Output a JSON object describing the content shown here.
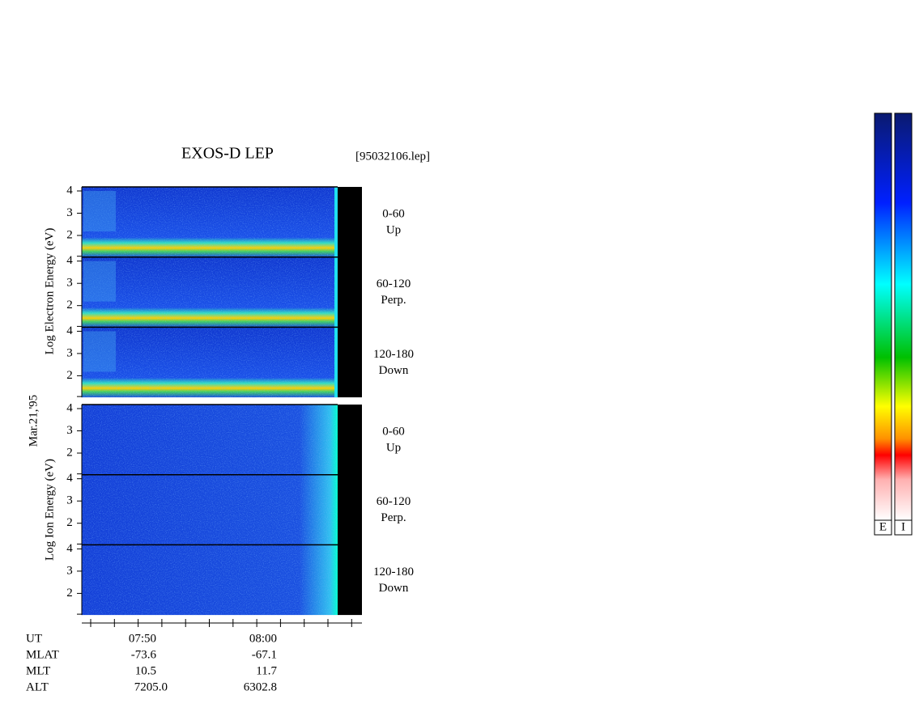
{
  "title": "EXOS-D LEP",
  "file": "[95032106.lep]",
  "date_label": "Mar.21,'95",
  "electron": {
    "axis_label": "Log  Electron  Energy (eV)",
    "panels": [
      {
        "label": [
          "0-60",
          "Up"
        ],
        "yticks": [
          "4",
          "3",
          "2"
        ]
      },
      {
        "label": [
          "60-120",
          "Perp."
        ],
        "yticks": [
          "4",
          "3",
          "2"
        ]
      },
      {
        "label": [
          "120-180",
          "Down"
        ],
        "yticks": [
          "4",
          "3",
          "2"
        ]
      }
    ]
  },
  "ion": {
    "axis_label": "Log  Ion  Energy (eV)",
    "panels": [
      {
        "label": [
          "0-60",
          "Up"
        ],
        "yticks": [
          "4",
          "3",
          "2"
        ]
      },
      {
        "label": [
          "60-120",
          "Perp."
        ],
        "yticks": [
          "4",
          "3",
          "2"
        ]
      },
      {
        "label": [
          "120-180",
          "Down"
        ],
        "yticks": [
          "4",
          "3",
          "2"
        ]
      }
    ]
  },
  "time_axis": {
    "row_labels": [
      "UT",
      "MLAT",
      "MLT",
      "ALT"
    ],
    "columns": [
      [
        "07:50",
        "-73.6",
        "10.5",
        "7205.0"
      ],
      [
        "08:00",
        "-67.1",
        "11.7",
        "6302.8"
      ]
    ]
  },
  "colorbar_labels": [
    "E",
    "I"
  ]
}
